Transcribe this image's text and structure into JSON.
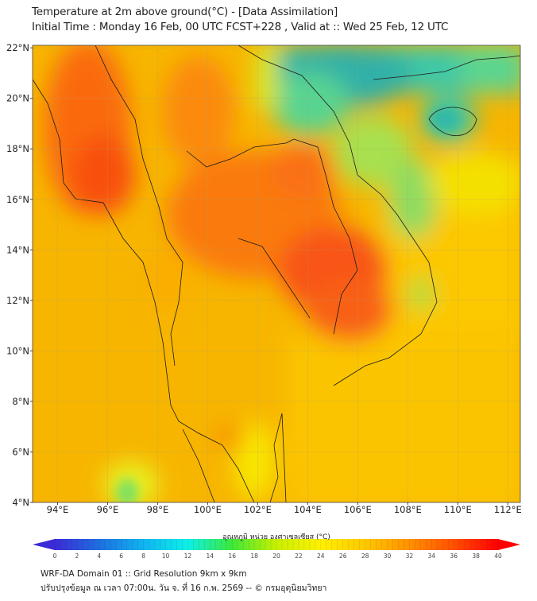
{
  "header": {
    "title": "Temperature at 2m above ground(°C) - [Data Assimilation]",
    "subtitle": "Initial Time : Monday 16 Feb, 00 UTC FCST+228 , Valid at :: Wed 25 Feb, 12 UTC"
  },
  "map": {
    "lat_ticks": [
      "22°N",
      "20°N",
      "18°N",
      "16°N",
      "14°N",
      "12°N",
      "10°N",
      "8°N",
      "6°N",
      "4°N"
    ],
    "lon_ticks": [
      "94°E",
      "96°E",
      "98°E",
      "100°E",
      "102°E",
      "104°E",
      "106°E",
      "108°E",
      "110°E",
      "112°E"
    ],
    "lat_values": [
      22,
      20,
      18,
      16,
      14,
      12,
      10,
      8,
      6,
      4
    ],
    "lon_values": [
      94,
      96,
      98,
      100,
      102,
      104,
      106,
      108,
      110,
      112
    ],
    "extent": {
      "lon_min": 93,
      "lon_max": 112.5,
      "lat_min": 4,
      "lat_max": 22.1
    }
  },
  "colorbar": {
    "label": "อุณหภูมิ หน่วย องศาเซลเซียส (°C)",
    "ticks": [
      "0",
      "2",
      "4",
      "6",
      "8",
      "10",
      "12",
      "14",
      "16",
      "18",
      "20",
      "22",
      "24",
      "26",
      "28",
      "30",
      "32",
      "34",
      "36",
      "38",
      "40"
    ],
    "min": 0,
    "max": 40,
    "colors": [
      "#3b2bd6",
      "#1f6fe0",
      "#10b4f0",
      "#0ef0e8",
      "#3ee83a",
      "#c8f000",
      "#fff000",
      "#ffc800",
      "#ff9000",
      "#ff5000",
      "#ff0000"
    ]
  },
  "footer": {
    "line1": "WRF-DA Domain 01 :: Grid Resolution 9km x 9km",
    "line2": "ปรับปรุงข้อมูล ณ เวลา 07:00น. วัน จ. ที่ 16 ก.พ. 2569 -- © กรมอุตุนิยมวิทยา"
  }
}
